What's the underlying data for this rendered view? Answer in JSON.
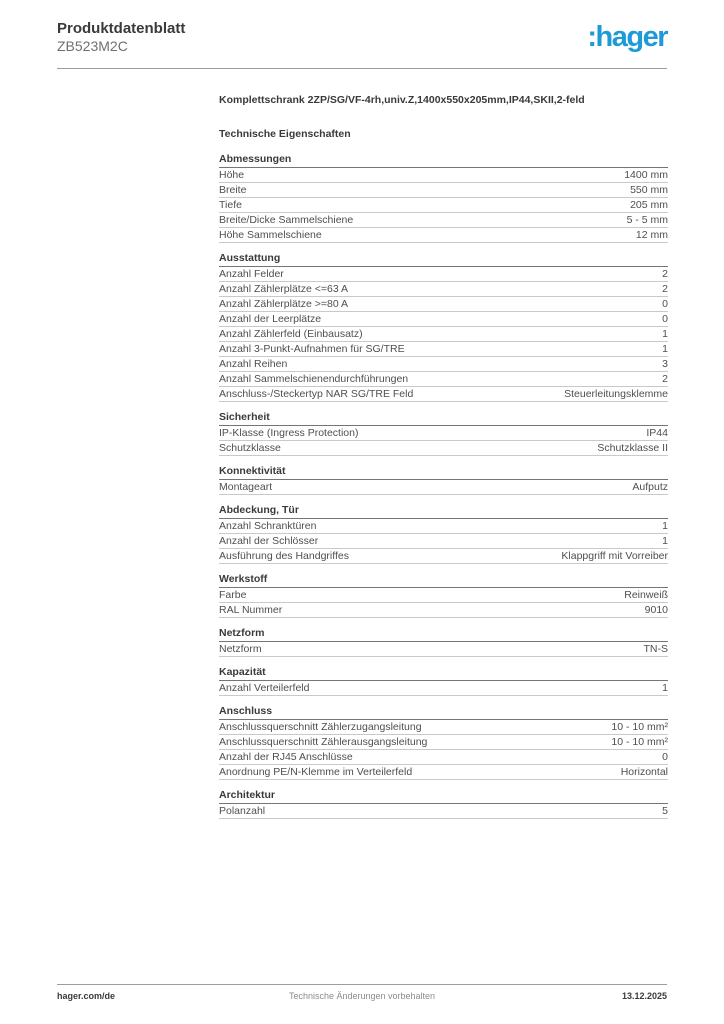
{
  "header": {
    "title": "Produktdatenblatt",
    "reference": "ZB523M2C",
    "logo_text": ":hager",
    "logo_color": "#1e9bd7"
  },
  "document": {
    "product_title": "Komplettschrank 2ZP/SG/VF-4rh,univ.Z,1400x550x205mm,IP44,SKII,2-feld",
    "section_heading": "Technische Eigenschaften",
    "sections": [
      {
        "title": "Abmessungen",
        "rows": [
          {
            "label": "Höhe",
            "value": "1400 mm"
          },
          {
            "label": "Breite",
            "value": "550 mm"
          },
          {
            "label": "Tiefe",
            "value": "205 mm"
          },
          {
            "label": "Breite/Dicke Sammelschiene",
            "value": "5 - 5 mm"
          },
          {
            "label": "Höhe Sammelschiene",
            "value": "12 mm"
          }
        ]
      },
      {
        "title": "Ausstattung",
        "rows": [
          {
            "label": "Anzahl Felder",
            "value": "2"
          },
          {
            "label": "Anzahl Zählerplätze <=63 A",
            "value": "2"
          },
          {
            "label": "Anzahl Zählerplätze >=80 A",
            "value": "0"
          },
          {
            "label": "Anzahl der Leerplätze",
            "value": "0"
          },
          {
            "label": "Anzahl Zählerfeld (Einbausatz)",
            "value": "1"
          },
          {
            "label": "Anzahl 3-Punkt-Aufnahmen für SG/TRE",
            "value": "1"
          },
          {
            "label": "Anzahl Reihen",
            "value": "3"
          },
          {
            "label": "Anzahl Sammelschienendurchführungen",
            "value": "2"
          },
          {
            "label": "Anschluss-/Steckertyp NAR SG/TRE Feld",
            "value": "Steuerleitungsklemme"
          }
        ]
      },
      {
        "title": "Sicherheit",
        "rows": [
          {
            "label": "IP-Klasse (Ingress Protection)",
            "value": "IP44"
          },
          {
            "label": "Schutzklasse",
            "value": "Schutzklasse II"
          }
        ]
      },
      {
        "title": "Konnektivität",
        "rows": [
          {
            "label": "Montageart",
            "value": "Aufputz"
          }
        ]
      },
      {
        "title": "Abdeckung, Tür",
        "rows": [
          {
            "label": "Anzahl Schranktüren",
            "value": "1"
          },
          {
            "label": "Anzahl der Schlösser",
            "value": "1"
          },
          {
            "label": "Ausführung des Handgriffes",
            "value": "Klappgriff mit Vorreiber"
          }
        ]
      },
      {
        "title": "Werkstoff",
        "rows": [
          {
            "label": "Farbe",
            "value": "Reinweiß"
          },
          {
            "label": "RAL Nummer",
            "value": "9010"
          }
        ]
      },
      {
        "title": "Netzform",
        "rows": [
          {
            "label": "Netzform",
            "value": "TN-S"
          }
        ]
      },
      {
        "title": "Kapazität",
        "rows": [
          {
            "label": "Anzahl Verteilerfeld",
            "value": "1"
          }
        ]
      },
      {
        "title": "Anschluss",
        "rows": [
          {
            "label": "Anschlussquerschnitt Zählerzugangsleitung",
            "value": "10 - 10 mm²"
          },
          {
            "label": "Anschlussquerschnitt Zählerausgangsleitung",
            "value": "10 - 10 mm²"
          },
          {
            "label": "Anzahl der RJ45 Anschlüsse",
            "value": "0"
          },
          {
            "label": "Anordnung PE/N-Klemme im Verteilerfeld",
            "value": "Horizontal"
          }
        ]
      },
      {
        "title": "Architektur",
        "rows": [
          {
            "label": "Polanzahl",
            "value": "5"
          }
        ]
      }
    ]
  },
  "footer": {
    "website": "hager.com/de",
    "notice": "Technische Änderungen vorbehalten",
    "date": "13.12.2025"
  }
}
